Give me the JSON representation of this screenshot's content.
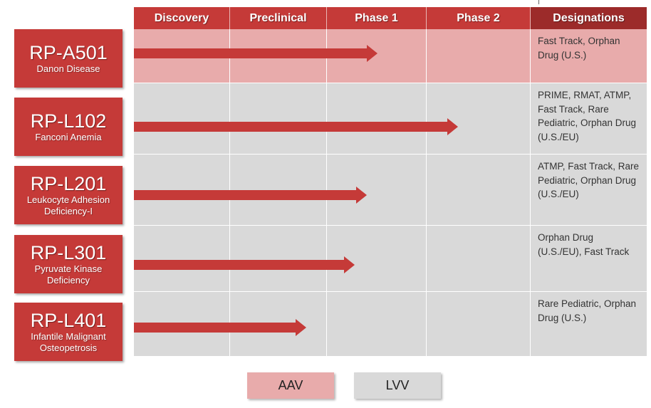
{
  "stages": [
    "Discovery",
    "Preclinical",
    "Phase 1",
    "Phase 2"
  ],
  "designations_header": "Designations",
  "colors": {
    "accent": "#c53a38",
    "designations_header": "#9c2b2a",
    "aav_row": "#e8abab",
    "lvv_row": "#d9d9d9"
  },
  "programs": [
    {
      "code": "RP-A501",
      "disease": "Danon Disease",
      "vector": "AAV",
      "progress_stage": "Phase 1",
      "progress_stage_fraction": 0.51,
      "designations": "Fast Track, Orphan Drug (U.S.)"
    },
    {
      "code": "RP-L102",
      "disease": "Fanconi Anemia",
      "vector": "LVV",
      "progress_stage": "Phase 2",
      "progress_stage_fraction": 0.3,
      "designations": "PRIME, RMAT, ATMP, Fast Track, Rare Pediatric, Orphan Drug (U.S./EU)"
    },
    {
      "code": "RP-L201",
      "disease": "Leukocyte Adhesion Deficiency-I",
      "vector": "LVV",
      "progress_stage": "Phase 1",
      "progress_stage_fraction": 0.4,
      "designations": "ATMP, Fast Track, Rare Pediatric, Orphan Drug (U.S./EU)"
    },
    {
      "code": "RP-L301",
      "disease": "Pyruvate Kinase Deficiency",
      "vector": "LVV",
      "progress_stage": "Phase 1",
      "progress_stage_fraction": 0.28,
      "designations": "Orphan Drug (U.S./EU), Fast Track"
    },
    {
      "code": "RP-L401",
      "disease": "Infantile Malignant Osteopetrosis",
      "vector": "LVV",
      "progress_stage": "Preclinical",
      "progress_stage_fraction": 0.79,
      "designations": "Rare Pediatric, Orphan Drug (U.S.)"
    }
  ],
  "legend": [
    {
      "label": "AAV"
    },
    {
      "label": "LVV"
    }
  ]
}
